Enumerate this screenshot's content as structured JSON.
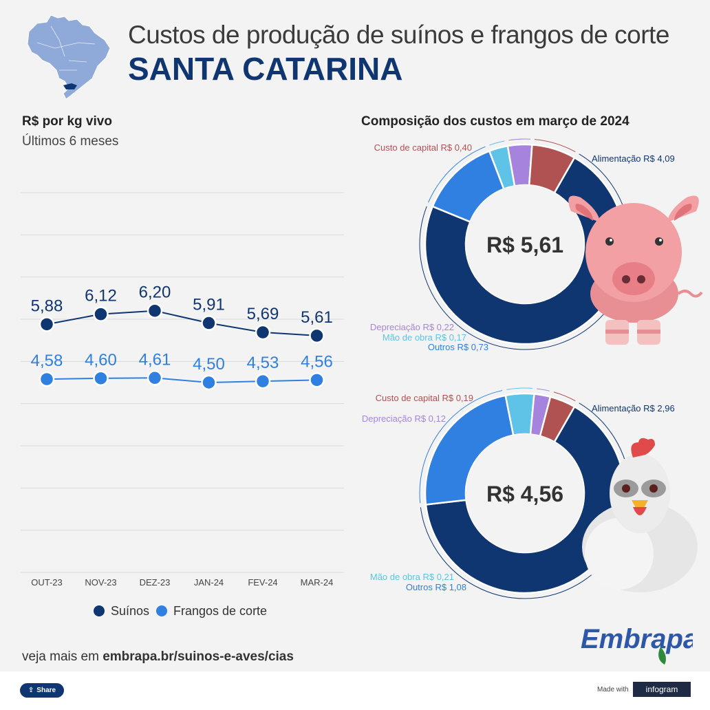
{
  "header": {
    "title": "Custos de produção de suínos e frangos de corte",
    "subtitle": "SANTA CATARINA"
  },
  "colors": {
    "navy": "#0f3670",
    "blue": "#2f80e0",
    "red": "#b05252",
    "purple": "#a684dd",
    "cyan": "#5ec3e6",
    "grid": "#d9d9d9"
  },
  "chart_data": [
    {
      "type": "line",
      "title": "R$ por kg vivo",
      "subtitle": "Últimos 6 meses",
      "categories": [
        "OUT-23",
        "NOV-23",
        "DEZ-23",
        "JAN-24",
        "FEV-24",
        "MAR-24"
      ],
      "series": [
        {
          "name": "Suínos",
          "color": "#0f3670",
          "values": [
            5.88,
            6.12,
            6.2,
            5.91,
            5.69,
            5.61
          ],
          "labels": [
            "5,88",
            "6,12",
            "6,20",
            "5,91",
            "5,69",
            "5,61"
          ]
        },
        {
          "name": "Frangos de corte",
          "color": "#2f80e0",
          "values": [
            4.58,
            4.6,
            4.61,
            4.5,
            4.53,
            4.56
          ],
          "labels": [
            "4,58",
            "4,60",
            "4,61",
            "4,50",
            "4,53",
            "4,56"
          ]
        }
      ],
      "ylim": [
        0,
        9
      ],
      "grid": true,
      "legend": "bottom"
    },
    {
      "type": "pie",
      "title": "Composição dos custos em março de 2024",
      "center_label": "R$ 5,61",
      "total": 5.61,
      "slices": [
        {
          "name": "Alimentação",
          "value": 4.09,
          "label": "Alimentação R$ 4,09",
          "color": "#0f3670"
        },
        {
          "name": "Outros",
          "value": 0.73,
          "label": "Outros R$ 0,73",
          "color": "#2f80e0"
        },
        {
          "name": "Mão de obra",
          "value": 0.17,
          "label": "Mão de obra R$ 0,17",
          "color": "#5ec3e6"
        },
        {
          "name": "Depreciação",
          "value": 0.22,
          "label": "Depreciação R$ 0,22",
          "color": "#a684dd"
        },
        {
          "name": "Custo de capital",
          "value": 0.4,
          "label": "Custo de capital R$ 0,40",
          "color": "#b05252"
        }
      ]
    },
    {
      "type": "pie",
      "title": "",
      "center_label": "R$ 4,56",
      "total": 4.56,
      "slices": [
        {
          "name": "Alimentação",
          "value": 2.96,
          "label": "Alimentação R$ 2,96",
          "color": "#0f3670"
        },
        {
          "name": "Outros",
          "value": 1.08,
          "label": "Outros R$ 1,08",
          "color": "#2f80e0"
        },
        {
          "name": "Mão de obra",
          "value": 0.21,
          "label": "Mão de obra R$ 0,21",
          "color": "#5ec3e6"
        },
        {
          "name": "Depreciação",
          "value": 0.12,
          "label": "Depreciação R$ 0,12",
          "color": "#a684dd"
        },
        {
          "name": "Custo de capital",
          "value": 0.19,
          "label": "Custo de capital R$ 0,19",
          "color": "#b05252"
        }
      ]
    }
  ],
  "footer": {
    "prefix": "veja mais em ",
    "link": "embrapa.br/suinos-e-aves/cias",
    "share_label": "Share",
    "made_with": "Made with",
    "infogram": "infogram",
    "logo_text": "Embrapa"
  }
}
